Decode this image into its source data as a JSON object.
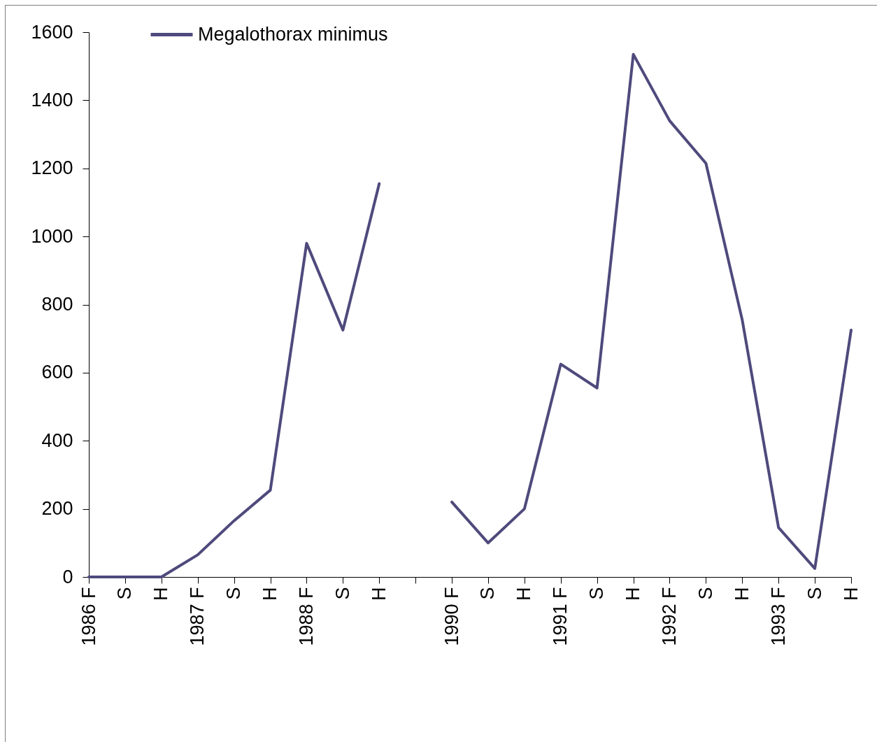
{
  "chart_data": {
    "type": "line",
    "categories": [
      "1986 F",
      "S",
      "H",
      "1987 F",
      "S",
      "H",
      "1988 F",
      "S",
      "H",
      null,
      "1990 F",
      "S",
      "H",
      "1991 F",
      "S",
      "H",
      "1992 F",
      "S",
      "H",
      "1993 F",
      "S",
      "H"
    ],
    "series": [
      {
        "name": "Megalothorax minimus",
        "color": "#4f4a7c",
        "values": [
          0,
          0,
          0,
          65,
          165,
          255,
          980,
          725,
          1155,
          null,
          220,
          100,
          200,
          625,
          555,
          1535,
          1340,
          1215,
          755,
          145,
          25,
          725
        ]
      }
    ],
    "ylim": [
      0,
      1600
    ],
    "yticks": [
      0,
      200,
      400,
      600,
      800,
      1000,
      1200,
      1400,
      1600
    ],
    "legend": "top left",
    "line_style": "solid"
  }
}
